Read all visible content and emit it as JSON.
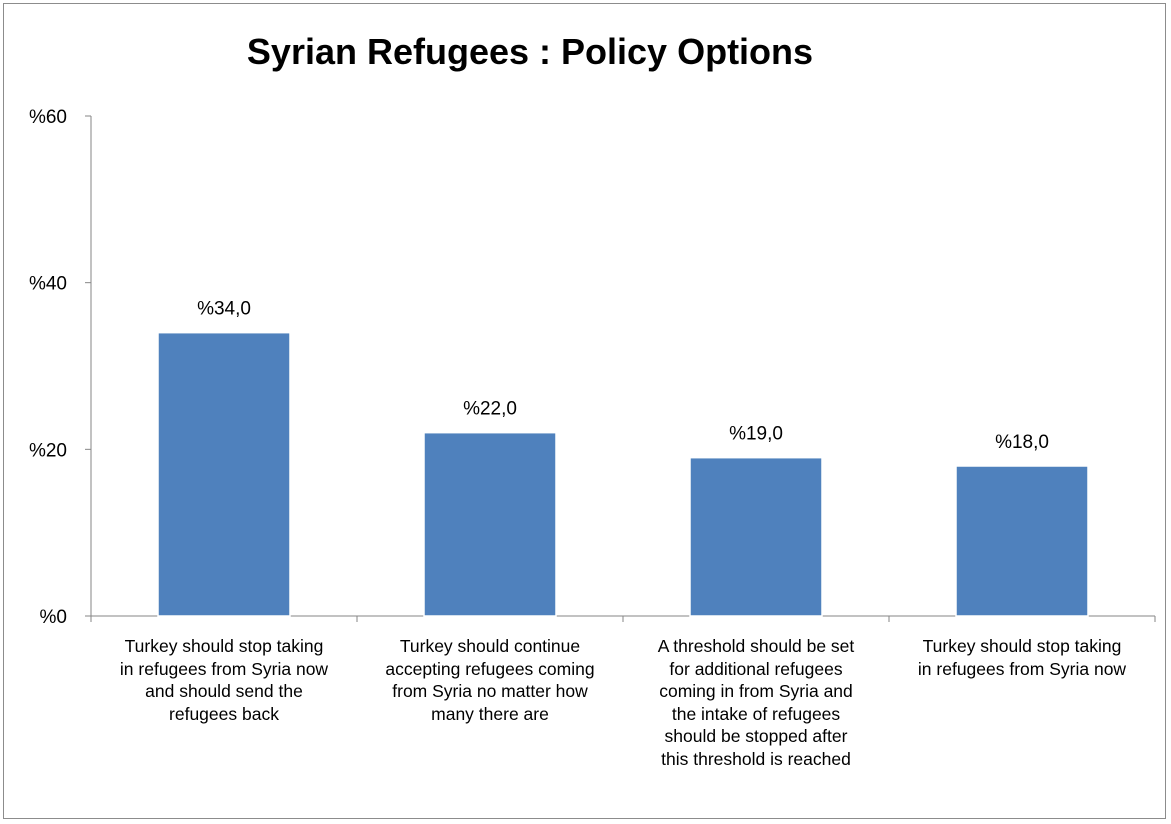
{
  "chart_data": {
    "type": "bar",
    "title": "Syrian Refugees : Policy Options",
    "xlabel": "",
    "ylabel": "",
    "ylim": [
      0,
      60
    ],
    "yticks": [
      0,
      20,
      40,
      60
    ],
    "ytick_labels": [
      "%0",
      "%20",
      "%40",
      "%60"
    ],
    "grid": false,
    "legend": "none",
    "bar_color": "#4f81bd",
    "categories": [
      "Turkey should stop taking in refugees from Syria now and should send the refugees back",
      "Turkey should continue accepting refugees coming from Syria no matter how many there are",
      "A threshold should be set for additional refugees coming in from Syria and the intake of refugees should be stopped after this threshold is reached",
      "Turkey should stop taking in refugees from Syria now"
    ],
    "category_lines": [
      [
        "Turkey should stop taking",
        "in refugees from Syria now",
        "and should send the",
        "refugees back"
      ],
      [
        "Turkey should continue",
        "accepting refugees coming",
        "from Syria no matter how",
        "many there are"
      ],
      [
        "A threshold should be set",
        "for additional refugees",
        "coming in from Syria and",
        "the intake of refugees",
        "should be stopped after",
        "this threshold is reached"
      ],
      [
        "Turkey should stop taking",
        "in refugees from Syria now"
      ]
    ],
    "values": [
      34.0,
      22.0,
      19.0,
      18.0
    ],
    "data_labels": [
      "%34,0",
      "%22,0",
      "%19,0",
      "%18,0"
    ]
  }
}
